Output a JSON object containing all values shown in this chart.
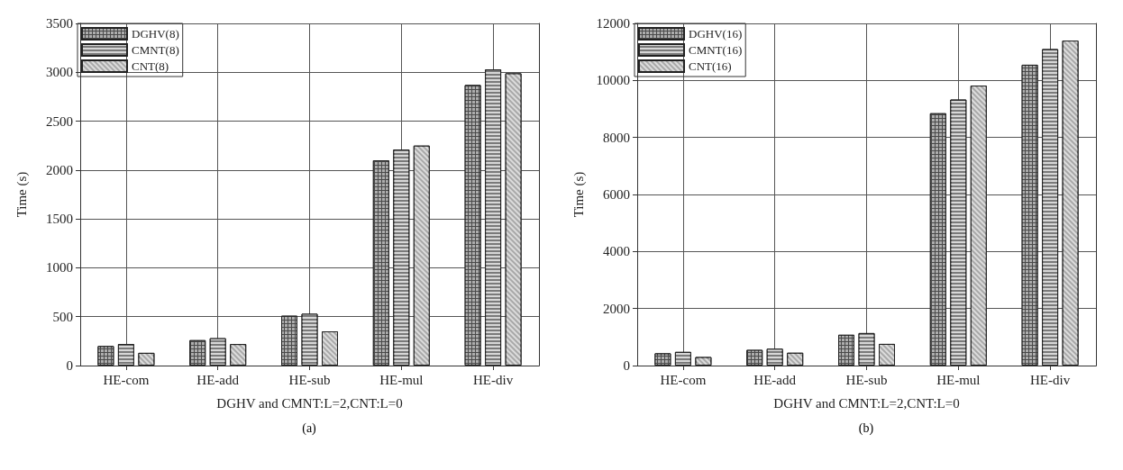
{
  "chart_data": [
    {
      "type": "bar",
      "ylabel": "Time (s)",
      "xlabel": "DGHV and CMNT:L=2,CNT:L=0",
      "annotations": [
        "(a)"
      ],
      "categories": [
        "HE-com",
        "HE-add",
        "HE-sub",
        "HE-mul",
        "HE-div"
      ],
      "series": [
        {
          "name": "DGHV(8)",
          "color": "#4a4a4a",
          "values": [
            200,
            260,
            510,
            2100,
            2870
          ]
        },
        {
          "name": "CMNT(8)",
          "color": "#7a7a7a",
          "values": [
            220,
            280,
            530,
            2210,
            3030
          ]
        },
        {
          "name": "CNT(8)",
          "color": "#a8a8a8",
          "values": [
            130,
            220,
            350,
            2250,
            2990
          ]
        }
      ],
      "ylim": [
        0,
        3500
      ],
      "yticks": [
        0,
        500,
        1000,
        1500,
        2000,
        2500,
        3000,
        3500
      ],
      "grid": true,
      "legend": "top left"
    },
    {
      "type": "bar",
      "ylabel": "Time (s)",
      "xlabel": "DGHV and CMNT:L=2,CNT:L=0",
      "annotations": [
        "(b)"
      ],
      "categories": [
        "HE-com",
        "HE-add",
        "HE-sub",
        "HE-mul",
        "HE-div"
      ],
      "series": [
        {
          "name": "DGHV(16)",
          "color": "#4a4a4a",
          "values": [
            430,
            550,
            1080,
            8850,
            10550
          ]
        },
        {
          "name": "CMNT(16)",
          "color": "#7a7a7a",
          "values": [
            480,
            590,
            1140,
            9330,
            11100
          ]
        },
        {
          "name": "CNT(16)",
          "color": "#a8a8a8",
          "values": [
            300,
            450,
            760,
            9820,
            11400
          ]
        }
      ],
      "ylim": [
        0,
        12000
      ],
      "yticks": [
        0,
        2000,
        4000,
        6000,
        8000,
        10000,
        12000
      ],
      "grid": true,
      "legend": "top left"
    }
  ]
}
